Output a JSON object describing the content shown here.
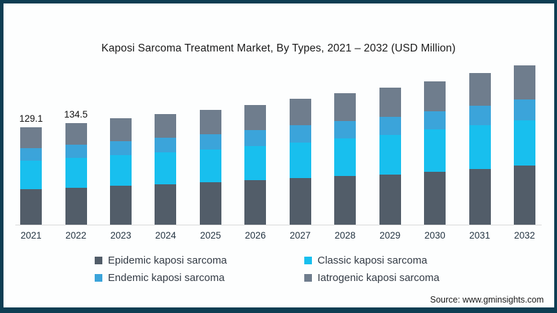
{
  "frame": {
    "border_color": "#0e3e53",
    "background": "#fdfefe"
  },
  "chart": {
    "title": "Kaposi Sarcoma Treatment Market, By Types, 2021 – 2032 (USD Million)"
  },
  "chart_data": {
    "type": "bar",
    "stacked": true,
    "title": "Kaposi Sarcoma Treatment Market, By Types, 2021 – 2032 (USD Million)",
    "xlabel": "",
    "ylabel": "USD Million",
    "grid": false,
    "legend_position": "bottom",
    "categories": [
      "2021",
      "2022",
      "2023",
      "2024",
      "2025",
      "2026",
      "2027",
      "2028",
      "2029",
      "2030",
      "2031",
      "2032"
    ],
    "series": [
      {
        "name": "Epidemic kaposi sarcoma",
        "color": "#525d69",
        "values": [
          47.1,
          49.2,
          51.7,
          54.0,
          56.1,
          58.7,
          62.0,
          64.4,
          66.9,
          70.6,
          74.0,
          78.0
        ]
      },
      {
        "name": "Classic kaposi sarcoma",
        "color": "#18bfee",
        "values": [
          37.8,
          39.0,
          40.7,
          42.1,
          43.8,
          45.6,
          46.8,
          49.9,
          52.6,
          55.4,
          58.3,
          60.3
        ]
      },
      {
        "name": "Endemic kaposi sarcoma",
        "color": "#3ba4da",
        "values": [
          16.6,
          17.9,
          18.4,
          19.4,
          20.3,
          21.6,
          23.3,
          23.4,
          23.6,
          24.4,
          25.9,
          27.7
        ]
      },
      {
        "name": "Iatrogenic kaposi sarcoma",
        "color": "#6f7d8d",
        "values": [
          27.6,
          28.4,
          30.2,
          31.5,
          32.3,
          33.1,
          34.9,
          36.3,
          38.9,
          40.1,
          42.8,
          45.5
        ]
      }
    ],
    "totals": [
      129.1,
      134.5,
      141.0,
      147.0,
      152.5,
      159.0,
      167.0,
      174.0,
      182.0,
      190.5,
      201.0,
      211.5
    ],
    "bar_labels": [
      "129.1",
      "134.5",
      "",
      "",
      "",
      "",
      "",
      "",
      "",
      "",
      "",
      ""
    ]
  },
  "legend": {
    "items": [
      {
        "label": "Epidemic kaposi sarcoma",
        "color": "#525d69"
      },
      {
        "label": "Classic kaposi sarcoma",
        "color": "#18bfee"
      },
      {
        "label": "Endemic kaposi sarcoma",
        "color": "#3ba4da"
      },
      {
        "label": "Iatrogenic kaposi sarcoma",
        "color": "#6f7d8d"
      }
    ]
  },
  "source": {
    "label": "Source: www.gminsights.com"
  }
}
